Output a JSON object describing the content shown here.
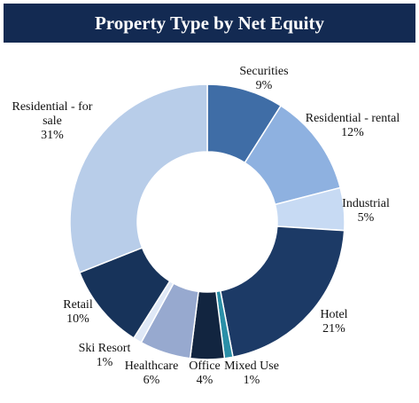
{
  "chart_data": {
    "type": "pie",
    "donut": true,
    "title": "Property Type by Net Equity",
    "start_angle_deg": 0,
    "direction": "clockwise",
    "slices": [
      {
        "name": "Securities",
        "label_lines": [
          "Securities"
        ],
        "percent_text": "9%",
        "value": 9,
        "color": "#3f6da6"
      },
      {
        "name": "Residential - rental",
        "label_lines": [
          "Residential - rental"
        ],
        "percent_text": "12%",
        "value": 12,
        "color": "#8eb1e0"
      },
      {
        "name": "Industrial",
        "label_lines": [
          "Industrial"
        ],
        "percent_text": "5%",
        "value": 5,
        "color": "#c7daf3"
      },
      {
        "name": "Hotel",
        "label_lines": [
          "Hotel"
        ],
        "percent_text": "21%",
        "value": 21,
        "color": "#1c3a66"
      },
      {
        "name": "Mixed Use",
        "label_lines": [
          "Mixed Use"
        ],
        "percent_text": "1%",
        "value": 1,
        "color": "#2a8fa8"
      },
      {
        "name": "Office",
        "label_lines": [
          "Office"
        ],
        "percent_text": "4%",
        "value": 4,
        "color": "#122540"
      },
      {
        "name": "Healthcare",
        "label_lines": [
          "Healthcare"
        ],
        "percent_text": "6%",
        "value": 6,
        "color": "#97a9cf"
      },
      {
        "name": "Ski Resort",
        "label_lines": [
          "Ski Resort"
        ],
        "percent_text": "1%",
        "value": 1,
        "color": "#dfe8f6"
      },
      {
        "name": "Retail",
        "label_lines": [
          "Retail"
        ],
        "percent_text": "10%",
        "value": 10,
        "color": "#17335a"
      },
      {
        "name": "Residential - for sale",
        "label_lines": [
          "Residential - for",
          "sale"
        ],
        "percent_text": "31%",
        "value": 31,
        "color": "#b8cde9"
      }
    ]
  }
}
